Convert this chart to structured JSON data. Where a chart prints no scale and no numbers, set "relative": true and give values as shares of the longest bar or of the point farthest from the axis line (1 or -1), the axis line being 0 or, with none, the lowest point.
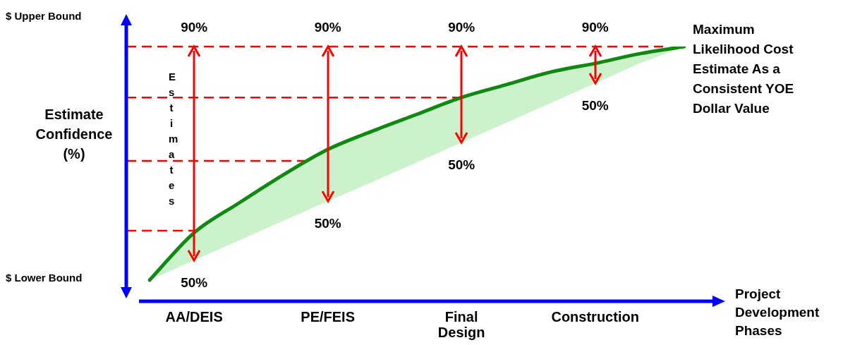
{
  "chart_data": {
    "type": "line",
    "relative": true,
    "legend": false,
    "grid": false,
    "marker": "none",
    "xlabel": "Project Development Phases",
    "ylabel": "Estimate Confidence (%)",
    "categories": [
      null,
      "AA/DEIS",
      null,
      null,
      "PE/FEIS",
      null,
      null,
      "Final Design",
      null,
      null,
      "Construction",
      null,
      null
    ],
    "series": [
      {
        "color": "#118811",
        "values": [
          0.083,
          0.269,
          0.385,
          0.496,
          0.596,
          0.668,
          0.734,
          0.8,
          0.85,
          0.9,
          0.934,
          0.972,
          1
        ],
        "lower": [
          0.083,
          0.161,
          0.238,
          0.316,
          0.393,
          0.468,
          0.546,
          0.623,
          0.701,
          0.778,
          0.856,
          0.934,
          1
        ],
        "upper": [
          0.083,
          0.269,
          0.385,
          0.496,
          0.596,
          0.668,
          0.734,
          0.8,
          0.85,
          0.9,
          0.934,
          0.972,
          1
        ]
      }
    ],
    "ref_lines": [
      {
        "axis": "y",
        "value": 1,
        "color": "#ff0000",
        "line_style": "dashed"
      },
      {
        "axis": "y",
        "value": 0.8,
        "color": "#ff0000",
        "line_style": "dashed"
      },
      {
        "axis": "y",
        "value": 0.551,
        "color": "#ff0000",
        "line_style": "dashed"
      },
      {
        "axis": "y",
        "value": 0.277,
        "color": "#ff0000",
        "line_style": "dashed"
      }
    ],
    "annotations": [
      "$ Upper Bound",
      "$ Lower Bound",
      "Estimates",
      "Maximum Likelihood Cost Estimate As a Consistent YOE Dollar Value",
      {
        "text": "90%",
        "x": "AA/DEIS",
        "y": 1
      },
      {
        "text": "50%",
        "x": "AA/DEIS",
        "y": 0.161
      },
      {
        "text": "90%",
        "x": "PE/FEIS",
        "y": 1
      },
      {
        "text": "50%",
        "x": "PE/FEIS",
        "y": 0.393
      },
      {
        "text": "90%",
        "x": "Final Design",
        "y": 1
      },
      {
        "text": "50%",
        "x": "Final Design",
        "y": 0.623
      },
      {
        "text": "90%",
        "x": "Construction",
        "y": 1
      },
      {
        "text": "50%",
        "x": "Construction",
        "y": 0.856
      }
    ]
  }
}
